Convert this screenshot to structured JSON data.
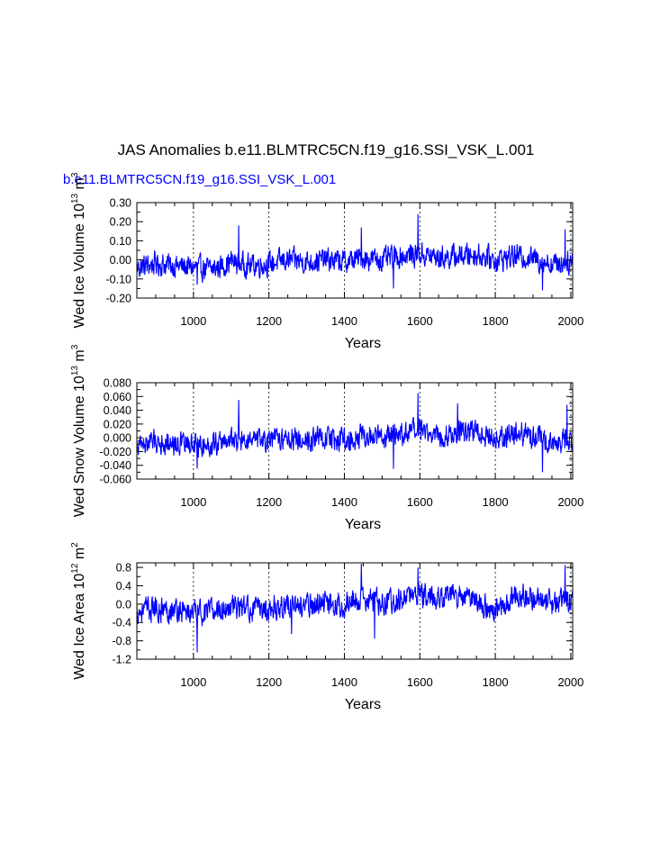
{
  "title": "JAS Anomalies b.e11.BLMTRC5CN.f19_g16.SSI_VSK_L.001",
  "subtitle": "b.e11.BLMTRC5CN.f19_g16.SSI_VSK_L.001",
  "series_color": "#0000ff",
  "chart_data": [
    {
      "type": "line",
      "ylabel_main": "Wed Ice Volume 10",
      "ylabel_exp": "13",
      "ylabel_unit": "m",
      "ylabel_unit_exp": "3",
      "xlabel": "Years",
      "xlim": [
        850,
        2005
      ],
      "ylim": [
        -0.2,
        0.3
      ],
      "yticks": [
        -0.2,
        -0.1,
        0.0,
        0.1,
        0.2,
        0.3
      ],
      "ytick_labels": [
        "-0.20",
        "-0.10",
        "0.00",
        "0.10",
        "0.20",
        "0.30"
      ],
      "xticks": [
        1000,
        1200,
        1400,
        1600,
        1800,
        2000
      ],
      "xtick_labels": [
        "1000",
        "1200",
        "1400",
        "1600",
        "1800",
        "2000"
      ],
      "grid": "vertical-dashed",
      "series_profile": {
        "x": [
          850,
          900,
          950,
          1000,
          1050,
          1100,
          1150,
          1200,
          1250,
          1300,
          1350,
          1400,
          1450,
          1500,
          1550,
          1600,
          1650,
          1700,
          1750,
          1800,
          1850,
          1900,
          1950,
          2005
        ],
        "mean": [
          -0.04,
          -0.02,
          -0.03,
          -0.04,
          -0.05,
          -0.01,
          -0.03,
          -0.02,
          0.0,
          -0.01,
          0.0,
          -0.01,
          0.01,
          0.0,
          0.02,
          0.03,
          0.01,
          0.02,
          0.03,
          0.0,
          0.02,
          0.01,
          -0.02,
          -0.01
        ],
        "amplitude": 0.05,
        "peaks": [
          [
            1120,
            0.18
          ],
          [
            1445,
            0.17
          ],
          [
            1595,
            0.24
          ],
          [
            1530,
            -0.15
          ],
          [
            1925,
            -0.16
          ],
          [
            1985,
            0.16
          ],
          [
            1010,
            -0.13
          ]
        ]
      }
    },
    {
      "type": "line",
      "ylabel_main": "Wed Snow Volume 10",
      "ylabel_exp": "13",
      "ylabel_unit": "m",
      "ylabel_unit_exp": "3",
      "xlabel": "Years",
      "xlim": [
        850,
        2005
      ],
      "ylim": [
        -0.06,
        0.08
      ],
      "yticks": [
        -0.06,
        -0.04,
        -0.02,
        0.0,
        0.02,
        0.04,
        0.06,
        0.08
      ],
      "ytick_labels": [
        "-0.060",
        "-0.040",
        "-0.020",
        "0.000",
        "0.020",
        "0.040",
        "0.060",
        "0.080"
      ],
      "xticks": [
        1000,
        1200,
        1400,
        1600,
        1800,
        2000
      ],
      "xtick_labels": [
        "1000",
        "1200",
        "1400",
        "1600",
        "1800",
        "2000"
      ],
      "grid": "vertical-dashed",
      "series_profile": {
        "x": [
          850,
          900,
          950,
          1000,
          1050,
          1100,
          1150,
          1200,
          1250,
          1300,
          1350,
          1400,
          1450,
          1500,
          1550,
          1600,
          1650,
          1700,
          1750,
          1800,
          1850,
          1900,
          1950,
          2005
        ],
        "mean": [
          -0.01,
          -0.005,
          -0.008,
          -0.01,
          -0.01,
          -0.002,
          -0.006,
          -0.004,
          0.0,
          -0.002,
          0.0,
          -0.002,
          0.003,
          0.0,
          0.005,
          0.01,
          0.004,
          0.008,
          0.01,
          0.0,
          0.006,
          0.003,
          -0.006,
          -0.003
        ],
        "amplitude": 0.014,
        "peaks": [
          [
            1120,
            0.055
          ],
          [
            1595,
            0.065
          ],
          [
            1700,
            0.05
          ],
          [
            1530,
            -0.045
          ],
          [
            1925,
            -0.05
          ],
          [
            1990,
            0.048
          ],
          [
            1010,
            -0.045
          ]
        ]
      }
    },
    {
      "type": "line",
      "ylabel_main": "Wed Ice Area 10",
      "ylabel_exp": "12",
      "ylabel_unit": "m",
      "ylabel_unit_exp": "2",
      "xlabel": "Years",
      "xlim": [
        850,
        2005
      ],
      "ylim": [
        -1.2,
        0.9
      ],
      "yticks": [
        -1.2,
        -0.8,
        -0.4,
        0.0,
        0.4,
        0.8
      ],
      "ytick_labels": [
        "-1.2",
        "-0.8",
        "-0.4",
        "0.0",
        "0.4",
        "0.8"
      ],
      "xticks": [
        1000,
        1200,
        1400,
        1600,
        1800,
        2000
      ],
      "xtick_labels": [
        "1000",
        "1200",
        "1400",
        "1600",
        "1800",
        "2000"
      ],
      "grid": "vertical-dashed",
      "series_profile": {
        "x": [
          850,
          900,
          950,
          1000,
          1050,
          1100,
          1150,
          1200,
          1250,
          1300,
          1350,
          1400,
          1450,
          1500,
          1550,
          1600,
          1650,
          1700,
          1750,
          1800,
          1850,
          1900,
          1950,
          2005
        ],
        "mean": [
          -0.15,
          -0.1,
          -0.12,
          -0.2,
          -0.15,
          -0.05,
          -0.1,
          -0.1,
          0.0,
          -0.05,
          0.05,
          0.0,
          0.1,
          0.05,
          0.1,
          0.2,
          0.15,
          0.2,
          0.1,
          -0.2,
          0.25,
          0.1,
          0.0,
          0.05
        ],
        "amplitude": 0.22,
        "peaks": [
          [
            1010,
            -1.05
          ],
          [
            1445,
            0.88
          ],
          [
            1480,
            -0.75
          ],
          [
            1595,
            0.8
          ],
          [
            1985,
            0.85
          ],
          [
            1260,
            -0.65
          ]
        ]
      }
    }
  ]
}
